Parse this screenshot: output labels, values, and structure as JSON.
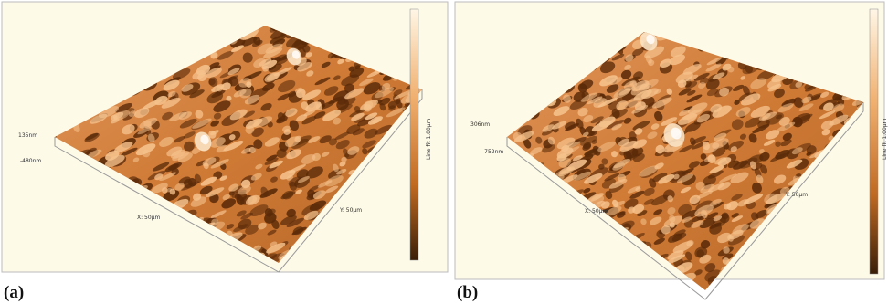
{
  "panels": [
    {
      "label": "(a)",
      "z_max": "135nm",
      "z_min": "-480nm",
      "y_axis": "Y: 50µm",
      "x_axis": "X: 50µm",
      "colorbar": "Line fit 1.00µm"
    },
    {
      "label": "(b)",
      "z_max": "306nm",
      "z_min": "-752nm",
      "y_axis": "Y: 50µm",
      "x_axis": "X: 50µm",
      "colorbar": "Line fit 1.00µm"
    }
  ]
}
